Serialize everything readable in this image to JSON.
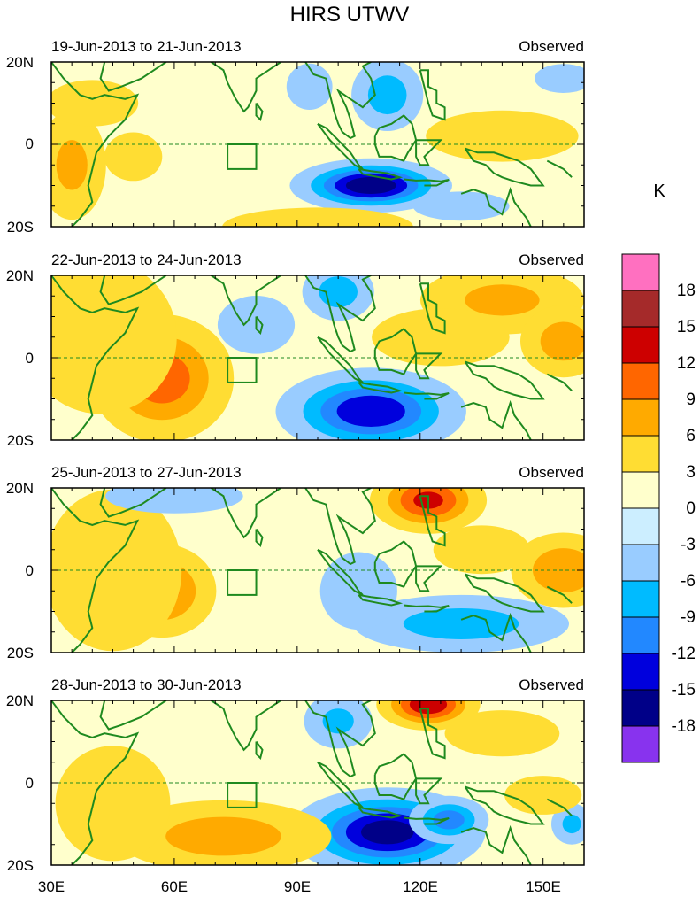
{
  "chart_data": {
    "type": "heatmap",
    "title": "HIRS UTWV",
    "units_label": "K",
    "x_ticks": [
      "30E",
      "60E",
      "90E",
      "120E",
      "150E"
    ],
    "x_tick_values": [
      30,
      60,
      90,
      120,
      150
    ],
    "y_ticks": [
      "20N",
      "0",
      "20S"
    ],
    "y_tick_values": [
      20,
      0,
      -20
    ],
    "xlim": [
      30,
      160
    ],
    "ylim": [
      -20,
      20
    ],
    "colorbar": {
      "labels": [
        "18",
        "15",
        "12",
        "9",
        "6",
        "3",
        "0",
        "-3",
        "-6",
        "-9",
        "-12",
        "-15",
        "-18"
      ],
      "colors": [
        "#ff70c0",
        "#a52a2a",
        "#cd0000",
        "#ff6600",
        "#ffaa00",
        "#ffdd33",
        "#ffffcc",
        "#cceeff",
        "#99ccff",
        "#00bbff",
        "#2288ff",
        "#0000dd",
        "#000088",
        "#8833ee"
      ]
    },
    "panels": [
      {
        "date_range": "19-Jun-2013 to 21-Jun-2013",
        "label": "Observed",
        "features": [
          {
            "lon": 108,
            "lat": -10,
            "sx": 9,
            "sy": 3,
            "v": -17
          },
          {
            "lon": 112,
            "lat": 12,
            "sx": 5,
            "sy": 5,
            "v": -7
          },
          {
            "lon": 93,
            "lat": 14,
            "sx": 4,
            "sy": 4,
            "v": -4
          },
          {
            "lon": 35,
            "lat": -5,
            "sx": 5,
            "sy": 8,
            "v": 6
          },
          {
            "lon": 50,
            "lat": -3,
            "sx": 6,
            "sy": 5,
            "v": 3
          },
          {
            "lon": 140,
            "lat": 2,
            "sx": 12,
            "sy": 4,
            "v": 5
          },
          {
            "lon": 95,
            "lat": -20,
            "sx": 15,
            "sy": 3,
            "v": 5
          },
          {
            "lon": 40,
            "lat": 10,
            "sx": 8,
            "sy": 4,
            "v": 4
          },
          {
            "lon": 155,
            "lat": 16,
            "sx": 6,
            "sy": 3,
            "v": -3
          },
          {
            "lon": 130,
            "lat": -15,
            "sx": 10,
            "sy": 3,
            "v": -3
          }
        ]
      },
      {
        "date_range": "22-Jun-2013 to 24-Jun-2013",
        "label": "Observed",
        "features": [
          {
            "lon": 57,
            "lat": -5,
            "sx": 9,
            "sy": 8,
            "v": 10
          },
          {
            "lon": 42,
            "lat": 5,
            "sx": 12,
            "sy": 12,
            "v": 5
          },
          {
            "lon": 108,
            "lat": -13,
            "sx": 11,
            "sy": 5,
            "v": -14
          },
          {
            "lon": 140,
            "lat": 14,
            "sx": 12,
            "sy": 5,
            "v": 6
          },
          {
            "lon": 155,
            "lat": 4,
            "sx": 6,
            "sy": 5,
            "v": 7
          },
          {
            "lon": 100,
            "lat": 16,
            "sx": 5,
            "sy": 4,
            "v": -7
          },
          {
            "lon": 125,
            "lat": 5,
            "sx": 12,
            "sy": 5,
            "v": 4
          },
          {
            "lon": 80,
            "lat": 8,
            "sx": 8,
            "sy": 6,
            "v": -3
          }
        ]
      },
      {
        "date_range": "25-Jun-2013 to 27-Jun-2013",
        "label": "Observed",
        "features": [
          {
            "lon": 122,
            "lat": 17,
            "sx": 7,
            "sy": 4,
            "v": 12
          },
          {
            "lon": 57,
            "lat": -5,
            "sx": 7,
            "sy": 6,
            "v": 9
          },
          {
            "lon": 45,
            "lat": 0,
            "sx": 12,
            "sy": 14,
            "v": 4
          },
          {
            "lon": 155,
            "lat": 0,
            "sx": 7,
            "sy": 5,
            "v": 8
          },
          {
            "lon": 130,
            "lat": -13,
            "sx": 15,
            "sy": 4,
            "v": -7
          },
          {
            "lon": 60,
            "lat": 18,
            "sx": 12,
            "sy": 3,
            "v": -4
          },
          {
            "lon": 105,
            "lat": -5,
            "sx": 8,
            "sy": 8,
            "v": -3
          },
          {
            "lon": 135,
            "lat": 5,
            "sx": 10,
            "sy": 5,
            "v": 3
          }
        ]
      },
      {
        "date_range": "28-Jun-2013 to 30-Jun-2013",
        "label": "Observed",
        "features": [
          {
            "lon": 112,
            "lat": -12,
            "sx": 11,
            "sy": 5,
            "v": -16
          },
          {
            "lon": 127,
            "lat": -9,
            "sx": 5,
            "sy": 3,
            "v": -10
          },
          {
            "lon": 122,
            "lat": 19,
            "sx": 6,
            "sy": 3,
            "v": 14
          },
          {
            "lon": 72,
            "lat": -13,
            "sx": 15,
            "sy": 5,
            "v": 7
          },
          {
            "lon": 45,
            "lat": -5,
            "sx": 10,
            "sy": 10,
            "v": 4
          },
          {
            "lon": 100,
            "lat": 15,
            "sx": 5,
            "sy": 4,
            "v": -6
          },
          {
            "lon": 157,
            "lat": -10,
            "sx": 3,
            "sy": 3,
            "v": -6
          },
          {
            "lon": 140,
            "lat": 12,
            "sx": 10,
            "sy": 4,
            "v": 4
          },
          {
            "lon": 150,
            "lat": -3,
            "sx": 8,
            "sy": 4,
            "v": 3
          }
        ]
      }
    ]
  }
}
